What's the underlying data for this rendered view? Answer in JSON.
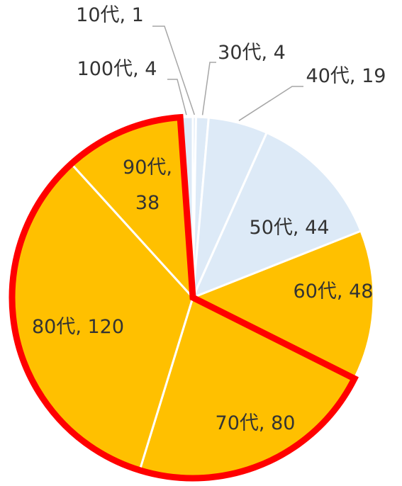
{
  "chart_data": {
    "type": "pie",
    "categories": [
      "10代",
      "30代",
      "40代",
      "50代",
      "60代",
      "70代",
      "80代",
      "90代",
      "100代"
    ],
    "values": [
      1,
      4,
      19,
      44,
      48,
      80,
      120,
      38,
      4
    ],
    "value_labels": [
      "10代, 1",
      "30代, 4",
      "40代, 19",
      "50代, 44",
      "60代, 48",
      "70代, 80",
      "80代, 120",
      "90代, 38",
      "100代, 4"
    ],
    "colors": [
      "#ddeaf7",
      "#ddeaf7",
      "#ddeaf7",
      "#ddeaf7",
      "#ffc000",
      "#ffc000",
      "#ffc000",
      "#ffc000",
      "#ddeaf7"
    ],
    "highlight": [
      5,
      6,
      7
    ],
    "highlight_color": "#ff0000"
  }
}
